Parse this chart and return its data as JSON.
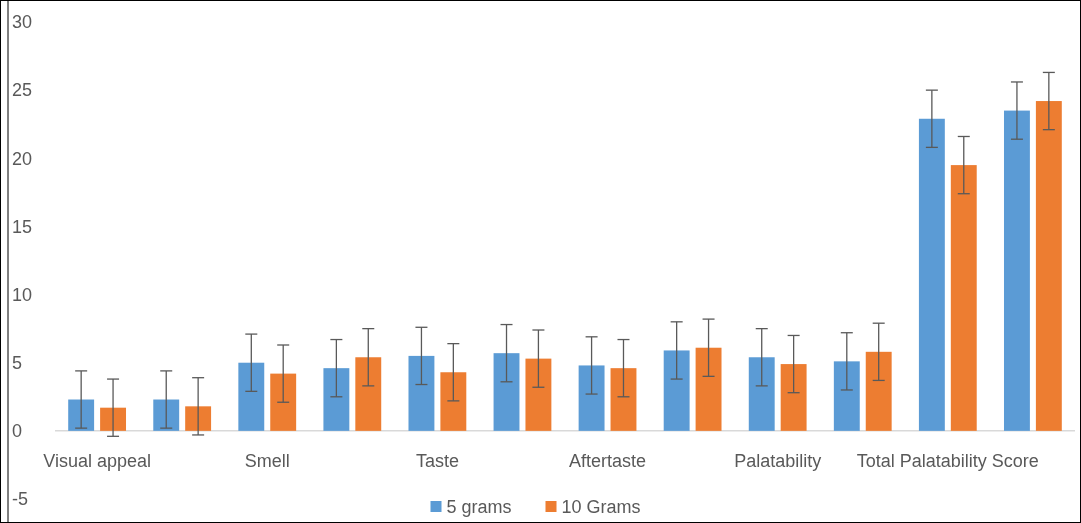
{
  "chart_data": {
    "type": "bar",
    "categories": [
      "Visual appeal",
      null,
      "Smell",
      null,
      "Taste",
      null,
      "Aftertaste",
      null,
      "Palatability",
      null,
      "Total Palatability Score",
      null
    ],
    "series": [
      {
        "name": "5 grams",
        "color": "#5b9bd5",
        "values": [
          2.3,
          2.3,
          5.0,
          4.6,
          5.5,
          5.7,
          4.8,
          5.9,
          5.4,
          5.1,
          22.9,
          23.5
        ],
        "errors": [
          2.1,
          2.1,
          2.1,
          2.1,
          2.1,
          2.1,
          2.1,
          2.1,
          2.1,
          2.1,
          2.1,
          2.1
        ]
      },
      {
        "name": "10 Grams",
        "color": "#ed7d31",
        "values": [
          1.7,
          1.8,
          4.2,
          5.4,
          4.3,
          5.3,
          4.6,
          6.1,
          4.9,
          5.8,
          19.5,
          24.2
        ],
        "errors": [
          2.1,
          2.1,
          2.1,
          2.1,
          2.1,
          2.1,
          2.1,
          2.1,
          2.1,
          2.1,
          2.1,
          2.1
        ]
      }
    ],
    "ylim": [
      -5,
      30
    ],
    "yticks": [
      -5,
      0,
      5,
      10,
      15,
      20,
      25,
      30
    ],
    "grid": false,
    "legend": "bottom"
  }
}
